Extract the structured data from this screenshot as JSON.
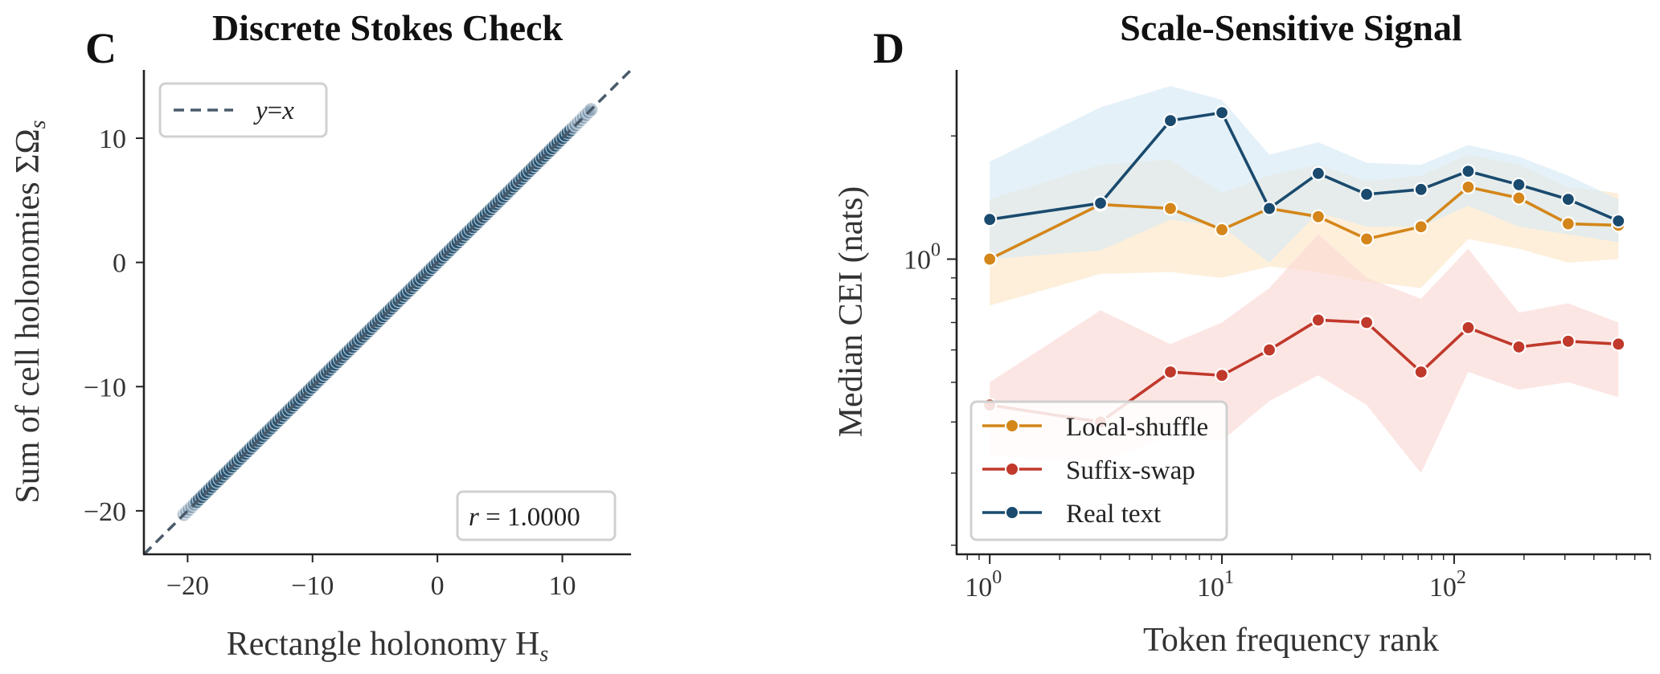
{
  "chart_data": [
    {
      "panel": "C",
      "type": "scatter",
      "title": "Discrete Stokes Check",
      "xlabel": "Rectangle holonomy H",
      "xlabel_sub": "s",
      "ylabel": "Sum of cell holonomies ΣΩ",
      "ylabel_sub": "s",
      "xlim": [
        -23.5,
        15.5
      ],
      "ylim": [
        -23.5,
        15.5
      ],
      "xticks": [
        -20,
        -10,
        0,
        10
      ],
      "yticks": [
        -20,
        -10,
        0,
        10
      ],
      "xtick_labels": [
        "−20",
        "−10",
        "0",
        "10"
      ],
      "ytick_labels": [
        "−20",
        "−10",
        "0",
        "10"
      ],
      "reference_line": {
        "label": "y = x",
        "label_parts": [
          "y",
          "=",
          "x"
        ],
        "style": "dashed",
        "color": "#4a5a6a"
      },
      "points_range": [
        -20.3,
        12.3
      ],
      "point_count": 160,
      "point_color": "#1f4e6e",
      "annotation": "r = 1.0000",
      "annotation_parts": [
        "r",
        " = 1.0000"
      ],
      "legend_position": "top-left"
    },
    {
      "panel": "D",
      "type": "line",
      "title": "Scale-Sensitive Signal",
      "xlabel": "Token frequency rank",
      "ylabel": "Median CEI (nats)",
      "xscale": "log",
      "yscale": "log",
      "xlim": [
        0.72,
        700
      ],
      "ylim": [
        0.19,
        2.9
      ],
      "xtick_labels": [
        {
          "base": "10",
          "exp": "0",
          "value": 1
        },
        {
          "base": "10",
          "exp": "1",
          "value": 10
        },
        {
          "base": "10",
          "exp": "2",
          "value": 100
        }
      ],
      "ytick_labels": [
        {
          "base": "10",
          "exp": "0",
          "value": 1
        }
      ],
      "x": [
        1,
        3,
        6,
        10,
        16,
        26,
        42,
        72,
        115,
        190,
        310,
        510
      ],
      "series": [
        {
          "name": "Local-shuffle",
          "color": "#d4861a",
          "band_color": "#fde6c8",
          "values": [
            1.0,
            1.36,
            1.33,
            1.18,
            1.33,
            1.27,
            1.12,
            1.2,
            1.5,
            1.41,
            1.22,
            1.21
          ],
          "lower": [
            0.77,
            0.92,
            0.93,
            0.9,
            0.96,
            0.93,
            0.88,
            0.85,
            1.12,
            1.06,
            0.98,
            1.0
          ],
          "upper": [
            1.4,
            1.7,
            1.75,
            1.45,
            1.6,
            1.7,
            1.55,
            1.6,
            1.8,
            1.7,
            1.5,
            1.45
          ]
        },
        {
          "name": "Suffix-swap",
          "color": "#c0392b",
          "band_color": "#fbd9d6",
          "values": [
            0.44,
            0.4,
            0.53,
            0.52,
            0.6,
            0.71,
            0.7,
            0.53,
            0.68,
            0.61,
            0.63,
            0.62
          ],
          "lower": [
            0.33,
            0.32,
            0.37,
            0.36,
            0.45,
            0.52,
            0.44,
            0.3,
            0.53,
            0.48,
            0.5,
            0.46
          ],
          "upper": [
            0.5,
            0.75,
            0.62,
            0.7,
            0.85,
            1.15,
            0.9,
            0.8,
            1.06,
            0.74,
            0.78,
            0.7
          ]
        },
        {
          "name": "Real text",
          "color": "#1a4a6e",
          "band_color": "#d7e9f5",
          "values": [
            1.25,
            1.37,
            2.18,
            2.28,
            1.33,
            1.62,
            1.44,
            1.48,
            1.64,
            1.52,
            1.4,
            1.24
          ],
          "lower": [
            1.0,
            1.05,
            1.25,
            1.2,
            0.98,
            1.3,
            1.2,
            1.2,
            1.35,
            1.2,
            1.15,
            1.1
          ],
          "upper": [
            1.73,
            2.35,
            2.65,
            2.45,
            1.8,
            1.93,
            1.72,
            1.7,
            1.9,
            1.78,
            1.6,
            1.4
          ]
        }
      ],
      "legend_position": "bottom-left"
    }
  ]
}
